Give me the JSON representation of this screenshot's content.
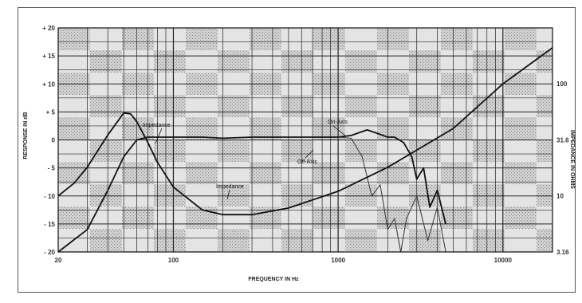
{
  "chart_data": {
    "type": "line",
    "xscale": "log",
    "xlim": [
      20,
      20000
    ],
    "ylim": [
      -20,
      20
    ],
    "right_ylim": [
      3.16,
      316
    ],
    "xlabel": "FREQUENCY IN Hz",
    "ylabel": "RESPONSE IN dB",
    "right_ylabel": "IMPEDANCE IN OHMS",
    "x_ticks": [
      {
        "value": 20,
        "label": "20"
      },
      {
        "value": 100,
        "label": "100"
      },
      {
        "value": 1000,
        "label": "1000"
      },
      {
        "value": 10000,
        "label": "10000"
      }
    ],
    "y_ticks": [
      {
        "value": 20,
        "label": "+ 20"
      },
      {
        "value": 15,
        "label": "+ 15"
      },
      {
        "value": 10,
        "label": "+ 10"
      },
      {
        "value": 5,
        "label": "+ 5"
      },
      {
        "value": 0,
        "label": "0"
      },
      {
        "value": -5,
        "label": "- 5"
      },
      {
        "value": -10,
        "label": "- 10"
      },
      {
        "value": -15,
        "label": "- 15"
      },
      {
        "value": -20,
        "label": "- 20"
      }
    ],
    "right_ticks": [
      {
        "value": 100,
        "label": "100"
      },
      {
        "value": 31.6,
        "label": "31.6"
      },
      {
        "value": 10,
        "label": "10"
      },
      {
        "value": 3.16,
        "label": "3.16"
      }
    ],
    "grid": true,
    "series": [
      {
        "name": "On-Axis",
        "axis": "left",
        "x": [
          20,
          30,
          40,
          50,
          60,
          70,
          80,
          100,
          120,
          150,
          200,
          300,
          500,
          700,
          1000,
          1200,
          1500,
          1800,
          2000,
          2200,
          2500,
          2800,
          3000,
          3300,
          3600,
          4000,
          4500
        ],
        "y": [
          -20,
          -16,
          -9,
          -3,
          0,
          0.5,
          0.5,
          0.5,
          0.5,
          0.5,
          0.3,
          0.5,
          0.5,
          0.5,
          0.5,
          0.8,
          1.8,
          1.0,
          0.5,
          0.5,
          -0.5,
          -3,
          -7,
          -5,
          -12,
          -9,
          -15
        ]
      },
      {
        "name": "Off-Axis",
        "axis": "left",
        "x": [
          1000,
          1200,
          1400,
          1600,
          1800,
          2000,
          2200,
          2400,
          2600,
          3000,
          3500,
          4000,
          4500
        ],
        "y": [
          0.5,
          0.3,
          -3,
          -10,
          -8,
          -16,
          -14,
          -20,
          -14,
          -10,
          -18,
          -12,
          -20
        ]
      },
      {
        "name": "Impedance",
        "axis": "right",
        "x": [
          20,
          25,
          30,
          40,
          50,
          55,
          60,
          70,
          80,
          100,
          150,
          200,
          300,
          500,
          1000,
          2000,
          5000,
          10000,
          20000
        ],
        "y": [
          10,
          13,
          18,
          35,
          55,
          54,
          46,
          30,
          20,
          12,
          7.5,
          6.8,
          6.8,
          7.8,
          11,
          18,
          40,
          100,
          210
        ]
      }
    ],
    "annotations": [
      "Impedance",
      "On-Axis",
      "Off-Axis",
      "Impedance"
    ]
  }
}
